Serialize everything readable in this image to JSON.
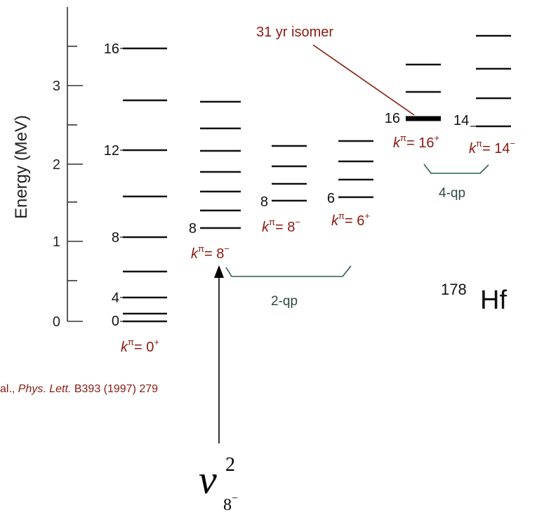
{
  "axis": {
    "label": "Energy (MeV)",
    "ticks": [
      "0",
      "1",
      "2",
      "3"
    ]
  },
  "ground_band": {
    "spins": [
      "0",
      "4",
      "8",
      "12",
      "16"
    ],
    "k_label": "k",
    "pi_label": "π",
    "k_value": "= 0",
    "k_parity": "+"
  },
  "band_8minus": {
    "spin": "8",
    "k_label": "k",
    "pi_label": "π",
    "k_value": "= 8",
    "k_parity": "−"
  },
  "band_8minus_b": {
    "spin": "8",
    "k_label": "k",
    "pi_label": "π",
    "k_value": "= 8",
    "k_parity": "−"
  },
  "band_6plus": {
    "spin": "6",
    "k_label": "k",
    "pi_label": "π",
    "k_value": "= 6",
    "k_parity": "+"
  },
  "band_16plus": {
    "spin": "16",
    "k_label": "k",
    "pi_label": "π",
    "k_value": "= 16",
    "k_parity": "+"
  },
  "band_14minus": {
    "spin": "14",
    "k_label": "k",
    "pi_label": "π",
    "k_value": "= 14",
    "k_parity": "−"
  },
  "isomer_label": "31 yr isomer",
  "brackets": {
    "two_qp": "2-qp",
    "four_qp": "4-qp"
  },
  "nucleus": {
    "mass": "178",
    "symbol": "Hf"
  },
  "citation": {
    "authors": "al.,",
    "journal": "Phys. Lett.",
    "ref": "B393 (1997) 279"
  },
  "nu_label": {
    "symbol": "ν",
    "sup": "2",
    "sub": "8",
    "sub_parity": "−"
  },
  "colors": {
    "label_red": "#8a1a10",
    "bracket_teal": "#2d5e55",
    "text_dark": "#111111"
  }
}
